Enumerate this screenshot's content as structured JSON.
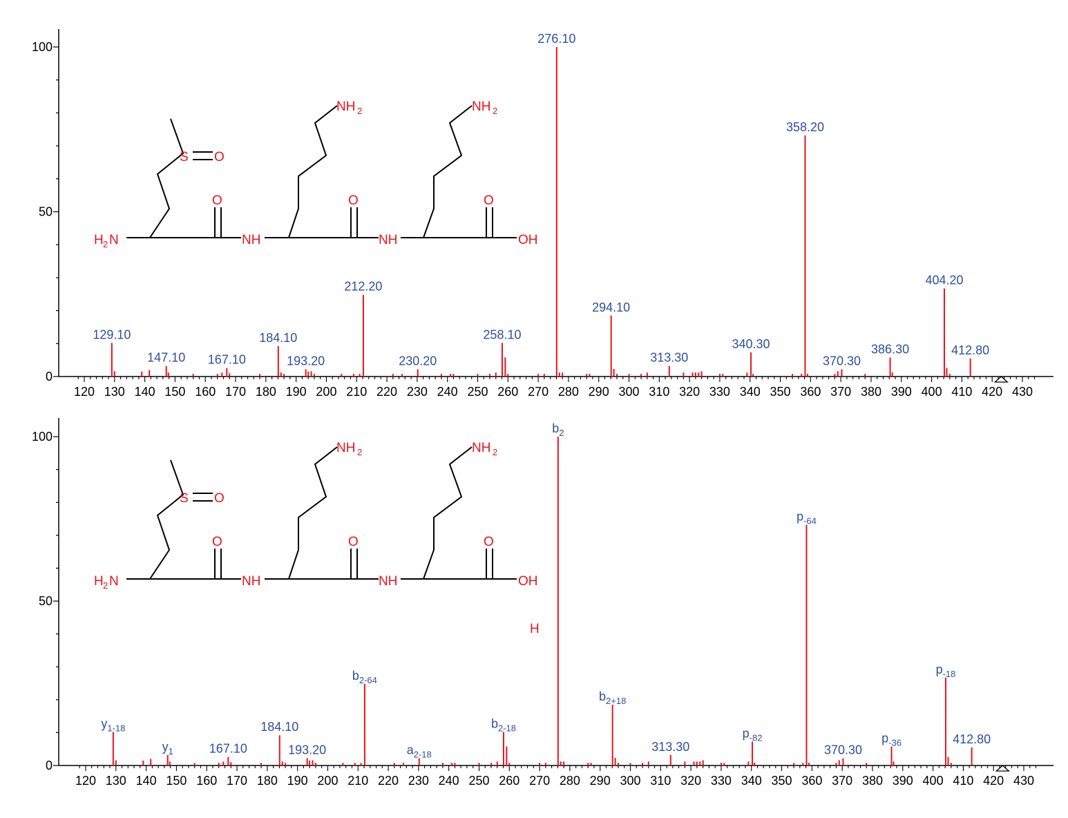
{
  "colors": {
    "peak": "#e8141c",
    "label": "#2e4fa0",
    "axis": "#000000",
    "atom": "#e8141c"
  },
  "structure": {
    "atoms": {
      "s": "S",
      "o_sulfoxide": "O",
      "nh2_left": "H",
      "nh2_left_n": "N",
      "nh2_left_sub": "2",
      "nh_1": "NH",
      "nh_2": "NH",
      "oh": "OH",
      "o_carbonyl_1": "O",
      "o_carbonyl_2": "O",
      "o_carbonyl_3": "O",
      "nh2_chain1": "NH",
      "nh2_chain1_sub": "2",
      "nh2_chain2": "NH",
      "nh2_chain2_sub": "2"
    },
    "stray_h": "H"
  },
  "chart_data": [
    {
      "type": "bar",
      "title": "",
      "xlabel": "",
      "ylabel": "",
      "xlim": [
        115,
        435
      ],
      "ylim": [
        0,
        105
      ],
      "x_ticks": [
        "120",
        "130",
        "140",
        "150",
        "160",
        "170",
        "180",
        "190",
        "200",
        "210",
        "220",
        "230",
        "240",
        "250",
        "260",
        "270",
        "280",
        "290",
        "300",
        "310",
        "320",
        "330",
        "340",
        "350",
        "360",
        "370",
        "380",
        "390",
        "400",
        "410",
        "420",
        "430"
      ],
      "y_ticks": [
        "0",
        "50",
        "100"
      ],
      "peaks": [
        {
          "x": 129.1,
          "y": 10.2,
          "label": "129.10"
        },
        {
          "x": 147.1,
          "y": 3.2,
          "label": "147.10"
        },
        {
          "x": 167.1,
          "y": 2.6,
          "label": "167.10"
        },
        {
          "x": 184.1,
          "y": 9.2,
          "label": "184.10"
        },
        {
          "x": 193.2,
          "y": 2.2,
          "label": "193.20"
        },
        {
          "x": 212.2,
          "y": 24.8,
          "label": "212.20"
        },
        {
          "x": 230.2,
          "y": 2.2,
          "label": "230.20"
        },
        {
          "x": 258.1,
          "y": 10.2,
          "label": "258.10"
        },
        {
          "x": 276.1,
          "y": 100,
          "label": "276.10"
        },
        {
          "x": 294.1,
          "y": 18.5,
          "label": "294.10"
        },
        {
          "x": 313.3,
          "y": 3.2,
          "label": "313.30"
        },
        {
          "x": 340.3,
          "y": 7.3,
          "label": "340.30"
        },
        {
          "x": 358.2,
          "y": 73.2,
          "label": "358.20"
        },
        {
          "x": 370.3,
          "y": 2.2,
          "label": "370.30"
        },
        {
          "x": 386.3,
          "y": 5.8,
          "label": "386.30"
        },
        {
          "x": 404.2,
          "y": 26.7,
          "label": "404.20"
        },
        {
          "x": 412.8,
          "y": 5.5,
          "label": "412.80"
        }
      ],
      "minor_peaks": [
        {
          "x": 130,
          "y": 1.6
        },
        {
          "x": 139,
          "y": 1.5
        },
        {
          "x": 141.5,
          "y": 2.0
        },
        {
          "x": 147.8,
          "y": 1.2
        },
        {
          "x": 156,
          "y": 0.8
        },
        {
          "x": 164,
          "y": 0.8
        },
        {
          "x": 165.5,
          "y": 1.2
        },
        {
          "x": 168,
          "y": 1.0
        },
        {
          "x": 178,
          "y": 0.8
        },
        {
          "x": 185,
          "y": 1.2
        },
        {
          "x": 186,
          "y": 0.8
        },
        {
          "x": 194,
          "y": 1.5
        },
        {
          "x": 195,
          "y": 1.6
        },
        {
          "x": 196,
          "y": 0.8
        },
        {
          "x": 205,
          "y": 0.8
        },
        {
          "x": 209,
          "y": 0.8
        },
        {
          "x": 211,
          "y": 0.8
        },
        {
          "x": 222,
          "y": 0.8
        },
        {
          "x": 225,
          "y": 0.8
        },
        {
          "x": 238,
          "y": 0.8
        },
        {
          "x": 241,
          "y": 0.8
        },
        {
          "x": 242,
          "y": 0.8
        },
        {
          "x": 250,
          "y": 0.8
        },
        {
          "x": 254,
          "y": 0.8
        },
        {
          "x": 256,
          "y": 1.2
        },
        {
          "x": 259.1,
          "y": 5.8
        },
        {
          "x": 260,
          "y": 0.8
        },
        {
          "x": 270,
          "y": 0.8
        },
        {
          "x": 272,
          "y": 0.8
        },
        {
          "x": 277,
          "y": 1.2
        },
        {
          "x": 278,
          "y": 1.2
        },
        {
          "x": 286,
          "y": 0.8
        },
        {
          "x": 287,
          "y": 0.8
        },
        {
          "x": 295,
          "y": 2.3
        },
        {
          "x": 296,
          "y": 0.8
        },
        {
          "x": 300,
          "y": 0.8
        },
        {
          "x": 304,
          "y": 0.8
        },
        {
          "x": 306,
          "y": 1.2
        },
        {
          "x": 318,
          "y": 1.2
        },
        {
          "x": 321,
          "y": 1.2
        },
        {
          "x": 322,
          "y": 1.2
        },
        {
          "x": 323,
          "y": 1.2
        },
        {
          "x": 324,
          "y": 1.6
        },
        {
          "x": 330,
          "y": 0.8
        },
        {
          "x": 331,
          "y": 0.8
        },
        {
          "x": 339,
          "y": 1.2
        },
        {
          "x": 341,
          "y": 0.8
        },
        {
          "x": 354,
          "y": 0.8
        },
        {
          "x": 357,
          "y": 0.8
        },
        {
          "x": 359,
          "y": 0.8
        },
        {
          "x": 368,
          "y": 0.8
        },
        {
          "x": 369,
          "y": 1.6
        },
        {
          "x": 378,
          "y": 0.8
        },
        {
          "x": 387,
          "y": 1.2
        },
        {
          "x": 405,
          "y": 2.6
        },
        {
          "x": 406,
          "y": 0.8
        }
      ]
    },
    {
      "type": "bar",
      "title": "",
      "xlabel": "",
      "ylabel": "",
      "xlim": [
        115,
        435
      ],
      "ylim": [
        0,
        105
      ],
      "x_ticks": [
        "120",
        "130",
        "140",
        "150",
        "160",
        "170",
        "180",
        "190",
        "200",
        "210",
        "220",
        "230",
        "240",
        "250",
        "260",
        "270",
        "280",
        "290",
        "300",
        "310",
        "320",
        "330",
        "340",
        "350",
        "360",
        "370",
        "380",
        "390",
        "400",
        "410",
        "420",
        "430"
      ],
      "y_ticks": [
        "0",
        "50",
        "100"
      ],
      "peaks": [
        {
          "x": 129.1,
          "y": 10.2,
          "label": "y",
          "sub": "1-18"
        },
        {
          "x": 147.1,
          "y": 3.2,
          "label": "y",
          "sub": "1"
        },
        {
          "x": 167.1,
          "y": 2.6,
          "label": "167.10",
          "sub": ""
        },
        {
          "x": 184.1,
          "y": 9.2,
          "label": "184.10",
          "sub": ""
        },
        {
          "x": 193.2,
          "y": 2.2,
          "label": "193.20",
          "sub": ""
        },
        {
          "x": 212.2,
          "y": 24.8,
          "label": "b",
          "sub": "2-64"
        },
        {
          "x": 230.2,
          "y": 2.2,
          "label": "a",
          "sub": "2-18"
        },
        {
          "x": 258.1,
          "y": 10.2,
          "label": "b",
          "sub": "2-18"
        },
        {
          "x": 276.1,
          "y": 100,
          "label": "b",
          "sub": "2"
        },
        {
          "x": 294.1,
          "y": 18.5,
          "label": "b",
          "sub": "2+18"
        },
        {
          "x": 313.3,
          "y": 3.2,
          "label": "313.30",
          "sub": ""
        },
        {
          "x": 340.3,
          "y": 7.3,
          "label": "p",
          "sub": "-82"
        },
        {
          "x": 358.2,
          "y": 73.2,
          "label": "p",
          "sub": "-64"
        },
        {
          "x": 370.3,
          "y": 2.2,
          "label": "370.30",
          "sub": ""
        },
        {
          "x": 386.3,
          "y": 5.8,
          "label": "p",
          "sub": "-36"
        },
        {
          "x": 404.2,
          "y": 26.7,
          "label": "p",
          "sub": "-18"
        },
        {
          "x": 412.8,
          "y": 5.5,
          "label": "412.80",
          "sub": ""
        }
      ],
      "minor_peaks": [
        {
          "x": 130,
          "y": 1.6
        },
        {
          "x": 139,
          "y": 1.5
        },
        {
          "x": 141.5,
          "y": 2.0
        },
        {
          "x": 147.8,
          "y": 1.2
        },
        {
          "x": 156,
          "y": 0.8
        },
        {
          "x": 164,
          "y": 0.8
        },
        {
          "x": 165.5,
          "y": 1.2
        },
        {
          "x": 168,
          "y": 1.0
        },
        {
          "x": 178,
          "y": 0.8
        },
        {
          "x": 185,
          "y": 1.2
        },
        {
          "x": 186,
          "y": 0.8
        },
        {
          "x": 194,
          "y": 1.5
        },
        {
          "x": 195,
          "y": 1.6
        },
        {
          "x": 196,
          "y": 0.8
        },
        {
          "x": 205,
          "y": 0.8
        },
        {
          "x": 209,
          "y": 0.8
        },
        {
          "x": 211,
          "y": 0.8
        },
        {
          "x": 222,
          "y": 0.8
        },
        {
          "x": 225,
          "y": 0.8
        },
        {
          "x": 238,
          "y": 0.8
        },
        {
          "x": 241,
          "y": 0.8
        },
        {
          "x": 242,
          "y": 0.8
        },
        {
          "x": 250,
          "y": 0.8
        },
        {
          "x": 254,
          "y": 0.8
        },
        {
          "x": 256,
          "y": 1.2
        },
        {
          "x": 259.1,
          "y": 5.8
        },
        {
          "x": 260,
          "y": 0.8
        },
        {
          "x": 270,
          "y": 0.8
        },
        {
          "x": 272,
          "y": 0.8
        },
        {
          "x": 277,
          "y": 1.2
        },
        {
          "x": 278,
          "y": 1.2
        },
        {
          "x": 286,
          "y": 0.8
        },
        {
          "x": 287,
          "y": 0.8
        },
        {
          "x": 295,
          "y": 2.3
        },
        {
          "x": 296,
          "y": 0.8
        },
        {
          "x": 300,
          "y": 0.8
        },
        {
          "x": 304,
          "y": 0.8
        },
        {
          "x": 306,
          "y": 1.2
        },
        {
          "x": 318,
          "y": 1.2
        },
        {
          "x": 321,
          "y": 1.2
        },
        {
          "x": 322,
          "y": 1.2
        },
        {
          "x": 323,
          "y": 1.2
        },
        {
          "x": 324,
          "y": 1.6
        },
        {
          "x": 330,
          "y": 0.8
        },
        {
          "x": 331,
          "y": 0.8
        },
        {
          "x": 339,
          "y": 1.2
        },
        {
          "x": 341,
          "y": 0.8
        },
        {
          "x": 354,
          "y": 0.8
        },
        {
          "x": 357,
          "y": 0.8
        },
        {
          "x": 359,
          "y": 0.8
        },
        {
          "x": 368,
          "y": 0.8
        },
        {
          "x": 369,
          "y": 1.6
        },
        {
          "x": 378,
          "y": 0.8
        },
        {
          "x": 387,
          "y": 1.2
        },
        {
          "x": 405,
          "y": 2.6
        },
        {
          "x": 406,
          "y": 0.8
        }
      ]
    }
  ]
}
